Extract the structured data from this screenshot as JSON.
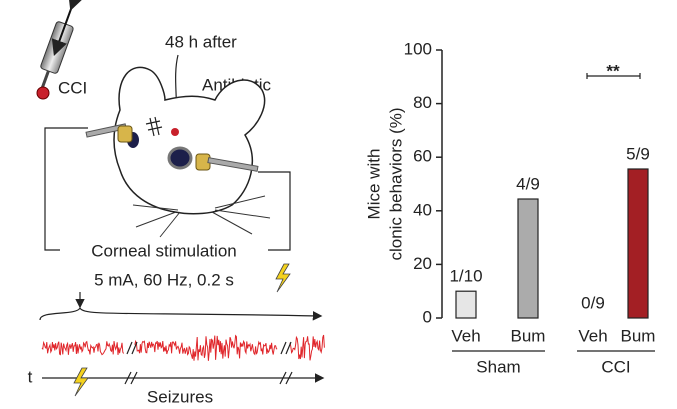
{
  "diagram": {
    "probe_label": "CCI",
    "time_label": "48 h after",
    "treatment_label": "Antibiotic",
    "stimulation_title": "Corneal stimulation",
    "stimulation_params": "5 mA, 60 Hz, 0.2 s",
    "time_axis_label": "t",
    "outcome_label": "Seizures"
  },
  "chart_data": {
    "type": "bar",
    "ylabel": [
      "Mice with",
      "clonic behaviors (%)"
    ],
    "categories": [
      "Veh",
      "Bum",
      "Veh",
      "Bum"
    ],
    "groups": [
      "Sham",
      "CCI"
    ],
    "values": [
      10,
      44.4,
      0,
      55.6
    ],
    "value_labels": [
      "1/10",
      "4/9",
      "0/9",
      "5/9"
    ],
    "colors": [
      "#e6e6e6",
      "#ababab",
      "#ffffff",
      "#a31f24"
    ],
    "ylim": [
      0,
      100
    ],
    "yticks": [
      0,
      20,
      40,
      60,
      80,
      100
    ],
    "annotation": "**",
    "grid": false
  }
}
